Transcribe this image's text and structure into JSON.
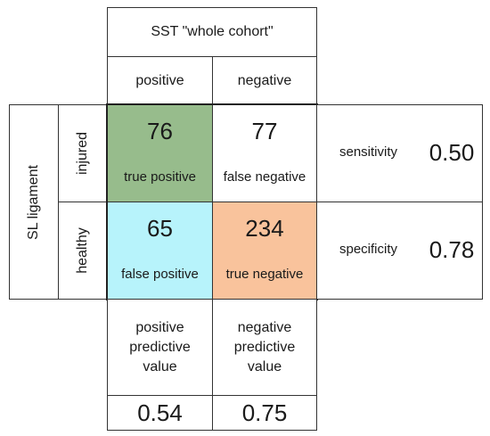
{
  "header": {
    "title": "SST \"whole cohort\"",
    "positive": "positive",
    "negative": "negative"
  },
  "rows": {
    "group_label": "SL ligament",
    "injured": "injured",
    "healthy": "healthy"
  },
  "matrix": {
    "tp": {
      "value": "76",
      "label": "true positive",
      "color": "#97bc8c"
    },
    "fn": {
      "value": "77",
      "label": "false negative",
      "color": "#ffffff"
    },
    "fp": {
      "value": "65",
      "label": "false positive",
      "color": "#b7f3fb"
    },
    "tn": {
      "value": "234",
      "label": "true negative",
      "color": "#f9c39c"
    }
  },
  "metrics": {
    "sensitivity_label": "sensitivity",
    "sensitivity_value": "0.50",
    "specificity_label": "specificity",
    "specificity_value": "0.78"
  },
  "predictive": {
    "ppv_label": "positive predictive value",
    "ppv_value": "0.54",
    "npv_label": "negative predictive value",
    "npv_value": "0.75"
  }
}
